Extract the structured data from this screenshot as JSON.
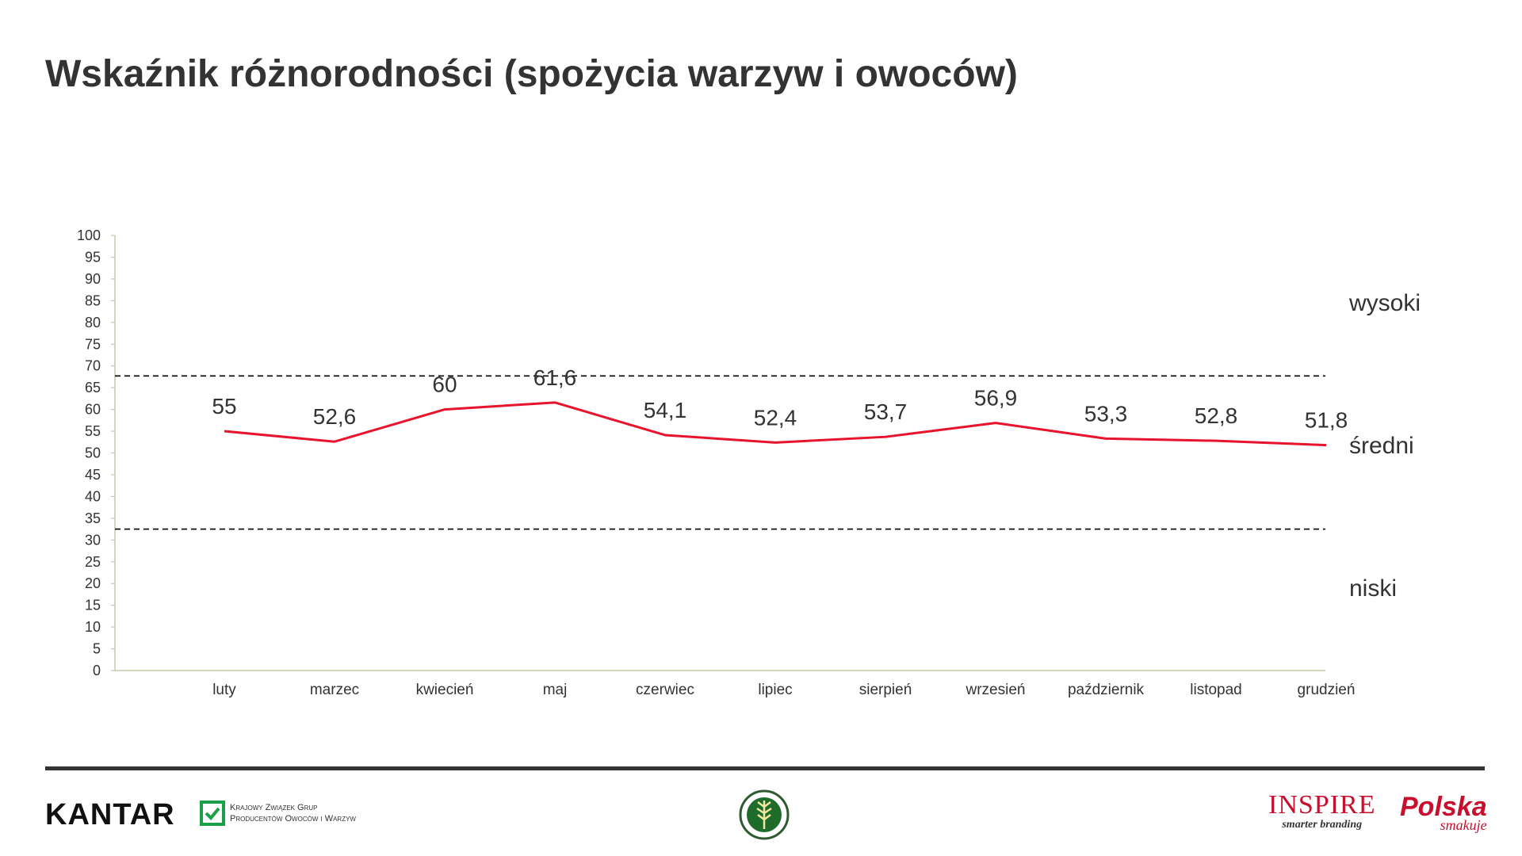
{
  "title": "Wskaźnik różnorodności (spożycia warzyw i owoców)",
  "chart_data": {
    "type": "line",
    "title": "Wskaźnik różnorodności (spożycia warzyw i owoców)",
    "categories": [
      "luty",
      "marzec",
      "kwiecień",
      "maj",
      "czerwiec",
      "lipiec",
      "sierpień",
      "wrzesień",
      "październik",
      "listopad",
      "grudzień"
    ],
    "values": [
      55,
      52.6,
      60,
      61.6,
      54.1,
      52.4,
      53.7,
      56.9,
      53.3,
      52.8,
      51.8
    ],
    "value_labels": [
      "55",
      "52,6",
      "60",
      "61,6",
      "54,1",
      "52,4",
      "53,7",
      "56,9",
      "53,3",
      "52,8",
      "51,8"
    ],
    "ylim": [
      0,
      100
    ],
    "yticks": [
      0,
      5,
      10,
      15,
      20,
      25,
      30,
      35,
      40,
      45,
      50,
      55,
      60,
      65,
      70,
      75,
      80,
      85,
      90,
      95,
      100
    ],
    "thresholds": [
      67.7,
      32.5
    ],
    "bands": [
      "wysoki",
      "średni",
      "niski"
    ],
    "line_color": "#e8132d",
    "threshold_style": "dashed black",
    "grid": false,
    "legend": "none"
  },
  "band_labels": {
    "high": "wysoki",
    "mid": "średni",
    "low": "niski"
  },
  "footer": {
    "kantar": "KANTAR",
    "kzgp_line1": "Krajowy Związek Grup",
    "kzgp_line2": "Producentów Owoców i Warzyw",
    "inspire": "INSPIRE",
    "inspire_sub": "smarter branding",
    "polska": "Polska",
    "polska_sub": "smakuje"
  }
}
